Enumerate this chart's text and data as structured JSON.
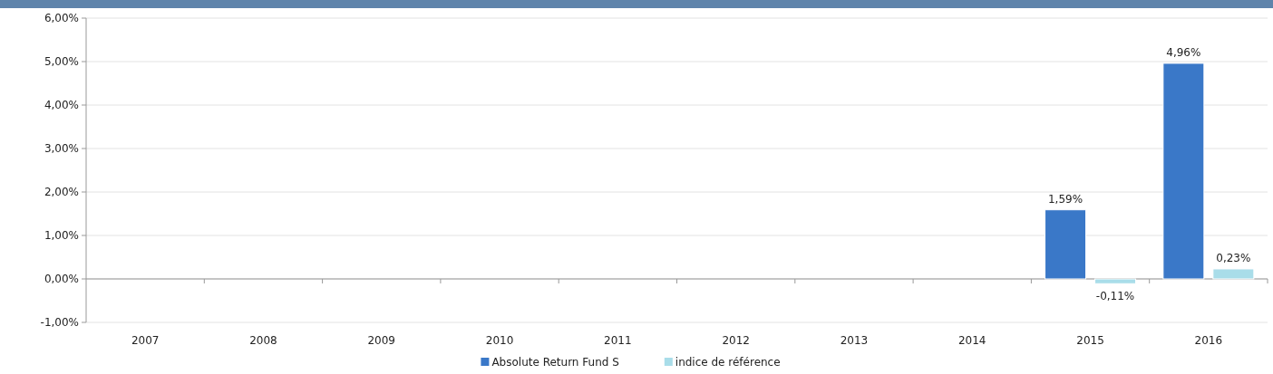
{
  "chart_data": {
    "type": "bar",
    "categories": [
      "2007",
      "2008",
      "2009",
      "2010",
      "2011",
      "2012",
      "2013",
      "2014",
      "2015",
      "2016"
    ],
    "series": [
      {
        "name": "Absolute Return Fund S",
        "color": "#3a78c8",
        "values": [
          null,
          null,
          null,
          null,
          null,
          null,
          null,
          null,
          1.59,
          4.96
        ],
        "value_labels": [
          null,
          null,
          null,
          null,
          null,
          null,
          null,
          null,
          "1,59%",
          "4,96%"
        ]
      },
      {
        "name": "indice de référence",
        "color": "#a9dde9",
        "values": [
          null,
          null,
          null,
          null,
          null,
          null,
          null,
          null,
          -0.11,
          0.23
        ],
        "value_labels": [
          null,
          null,
          null,
          null,
          null,
          null,
          null,
          null,
          "-0,11%",
          "0,23%"
        ]
      }
    ],
    "ylim": [
      -1,
      6
    ],
    "yticks": [
      {
        "value": -1,
        "label": "-1,00%"
      },
      {
        "value": 0,
        "label": "0,00%"
      },
      {
        "value": 1,
        "label": "1,00%"
      },
      {
        "value": 2,
        "label": "2,00%"
      },
      {
        "value": 3,
        "label": "3,00%"
      },
      {
        "value": 4,
        "label": "4,00%"
      },
      {
        "value": 5,
        "label": "5,00%"
      },
      {
        "value": 6,
        "label": "6,00%"
      }
    ],
    "grid": "y",
    "legend": "bottom"
  }
}
